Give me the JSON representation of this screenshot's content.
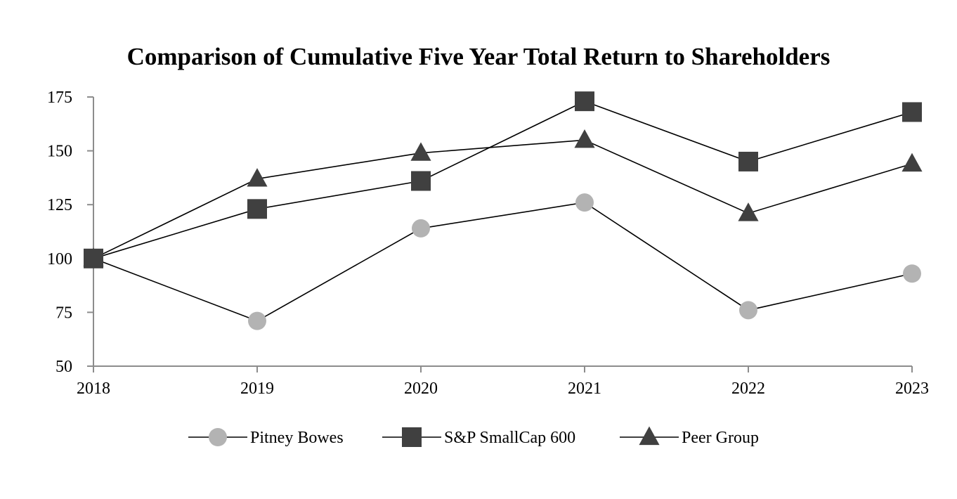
{
  "chart_data": {
    "type": "line",
    "title": "Comparison of Cumulative Five Year Total Return to Shareholders",
    "xlabel": "",
    "ylabel": "",
    "categories": [
      "2018",
      "2019",
      "2020",
      "2021",
      "2022",
      "2023"
    ],
    "ylim": [
      50,
      175
    ],
    "yticks": [
      50,
      75,
      100,
      125,
      150,
      175
    ],
    "grid": false,
    "legend_position": "bottom",
    "series": [
      {
        "name": "Pitney Bowes",
        "marker": "circle",
        "color": "#b3b3b3",
        "values": [
          100,
          71,
          114,
          126,
          76,
          93
        ]
      },
      {
        "name": "S&P SmallCap 600",
        "marker": "square",
        "color": "#404040",
        "values": [
          100,
          123,
          136,
          173,
          145,
          168
        ]
      },
      {
        "name": "Peer Group",
        "marker": "triangle",
        "color": "#404040",
        "values": [
          100,
          137,
          149,
          155,
          121,
          144
        ]
      }
    ]
  }
}
